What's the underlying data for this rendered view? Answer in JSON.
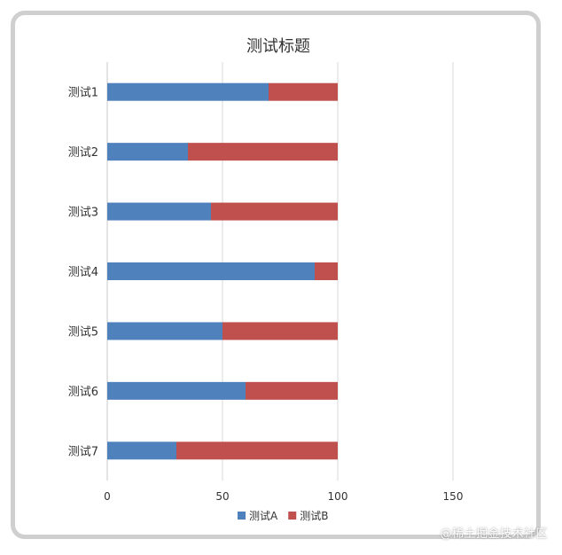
{
  "chart_data": {
    "type": "bar",
    "orientation": "horizontal",
    "stacked": true,
    "title": "测试标题",
    "categories": [
      "测试1",
      "测试2",
      "测试3",
      "测试4",
      "测试5",
      "测试6",
      "测试7"
    ],
    "series": [
      {
        "name": "测试A",
        "color": "#4F81BD",
        "values": [
          70,
          35,
          45,
          90,
          50,
          60,
          30
        ]
      },
      {
        "name": "测试B",
        "color": "#C0504D",
        "values": [
          30,
          65,
          55,
          10,
          50,
          40,
          70
        ]
      }
    ],
    "x_ticks": [
      0,
      50,
      100,
      150
    ],
    "xlim": [
      0,
      150
    ],
    "grid": true,
    "legend_position": "bottom"
  },
  "watermark": "@稀土掘金技术社区"
}
